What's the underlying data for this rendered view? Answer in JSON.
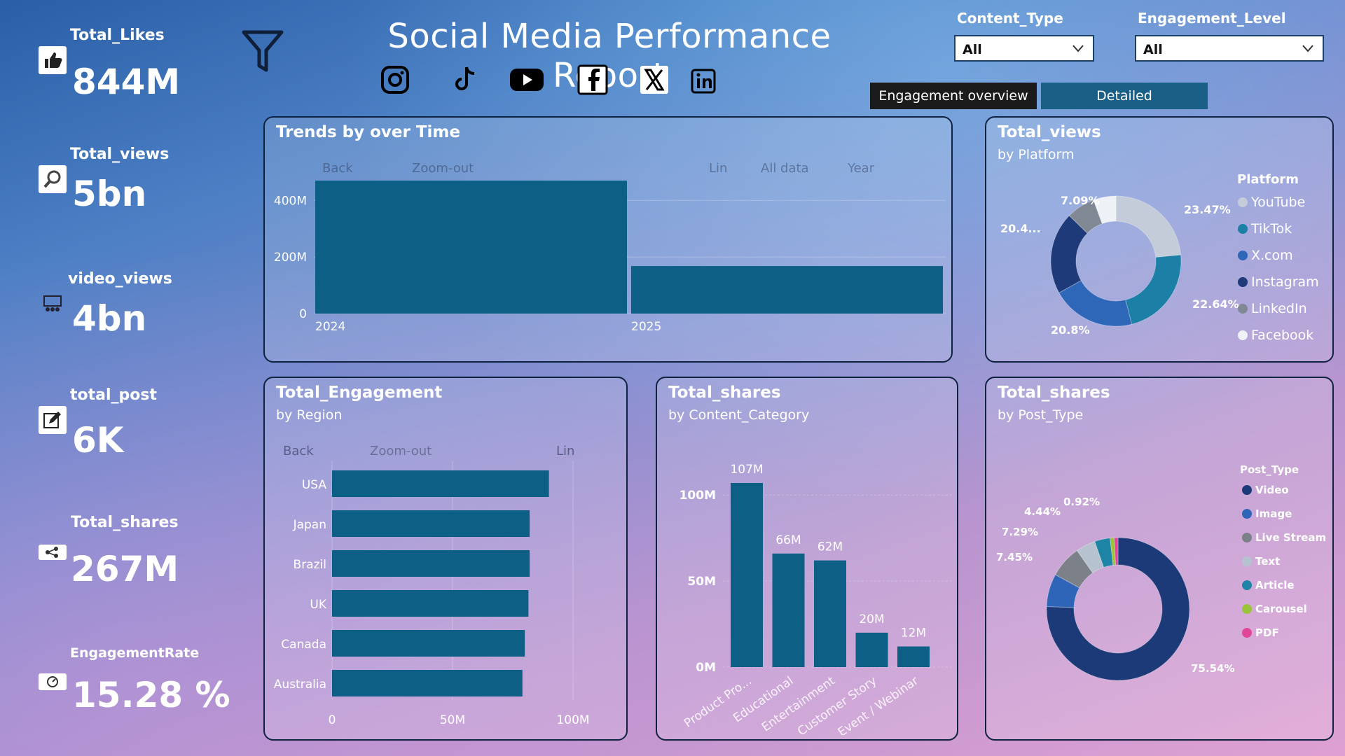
{
  "report_title": "Social Media Performance Report",
  "kpis": [
    {
      "label": "Total_Likes",
      "value": "844M",
      "icon": "thumbs-up-icon"
    },
    {
      "label": "Total_views",
      "value": "5bn",
      "icon": "magnifier-icon"
    },
    {
      "label": "video_views",
      "value": "4bn",
      "icon": "video-audience-icon"
    },
    {
      "label": "total_post",
      "value": "6K",
      "icon": "edit-icon"
    },
    {
      "label": "Total_shares",
      "value": "267M",
      "icon": "share-icon"
    },
    {
      "label": "EngagementRate",
      "value": "15.28 %",
      "icon": "gauge-icon"
    }
  ],
  "social_icons": [
    "instagram-icon",
    "tiktok-icon",
    "youtube-icon",
    "facebook-icon",
    "x-icon",
    "linkedin-icon"
  ],
  "filters": {
    "content_type": {
      "label": "Content_Type",
      "value": "All"
    },
    "engagement_level": {
      "label": "Engagement_Level",
      "value": "All"
    }
  },
  "tabs": {
    "overview": "Engagement overview",
    "detailed": "Detailed"
  },
  "toolbar": {
    "back": "Back",
    "zoom_out": "Zoom-out",
    "lin": "Lin",
    "all_data": "All data",
    "year": "Year"
  },
  "colors": {
    "bar": "#0d5f86",
    "panel_border": "#0f2240"
  },
  "chart_data": [
    {
      "id": "trends",
      "type": "bar",
      "title": "Trends by over Time",
      "categories": [
        "2024",
        "2025"
      ],
      "values": [
        470000000,
        168000000
      ],
      "y_ticks": [
        "0",
        "200M",
        "400M"
      ],
      "y_tick_values": [
        0,
        200000000,
        400000000
      ],
      "ylim": [
        0,
        470000000
      ]
    },
    {
      "id": "views_platform",
      "type": "pie",
      "title": "Total_views",
      "subtitle": "by Platform",
      "legend_title": "Platform",
      "labels": [
        "YouTube",
        "TikTok",
        "X.com",
        "Instagram",
        "LinkedIn",
        "Facebook"
      ],
      "values": [
        23.47,
        22.64,
        20.8,
        20.4,
        7.09,
        5.6
      ],
      "data_labels": [
        "23.47%",
        "22.64%",
        "20.8%",
        "20.4...",
        "7.09%",
        ""
      ],
      "colors": [
        "#c3ccd8",
        "#1c7fa6",
        "#2e66b8",
        "#1e3a78",
        "#7f8893",
        "#eef1f5"
      ]
    },
    {
      "id": "engagement_region",
      "type": "bar",
      "orientation": "horizontal",
      "title": "Total_Engagement",
      "subtitle": "by Region",
      "categories": [
        "USA",
        "Japan",
        "Brazil",
        "UK",
        "Canada",
        "Australia"
      ],
      "values": [
        90000000,
        82000000,
        82000000,
        81500000,
        80000000,
        79000000
      ],
      "x_ticks": [
        "0",
        "50M",
        "100M"
      ],
      "x_tick_values": [
        0,
        50000000,
        100000000
      ],
      "xlim": [
        0,
        100000000
      ]
    },
    {
      "id": "shares_category",
      "type": "bar",
      "title": "Total_shares",
      "subtitle": "by Content_Category",
      "categories": [
        "Product Pro...",
        "Educational",
        "Entertainment",
        "Customer Story",
        "Event / Webinar"
      ],
      "values": [
        107000000,
        66000000,
        62000000,
        20000000,
        12000000
      ],
      "data_labels": [
        "107M",
        "66M",
        "62M",
        "20M",
        "12M"
      ],
      "y_ticks": [
        "0M",
        "50M",
        "100M"
      ],
      "y_tick_values": [
        0,
        50000000,
        100000000
      ],
      "ylim": [
        0,
        107000000
      ]
    },
    {
      "id": "shares_posttype",
      "type": "pie",
      "title": "Total_shares",
      "subtitle": "by Post_Type",
      "legend_title": "Post_Type",
      "labels": [
        "Video",
        "Image",
        "Live Stream",
        "Text",
        "Article",
        "Carousel",
        "PDF"
      ],
      "values": [
        75.54,
        7.45,
        7.29,
        4.44,
        3.5,
        0.92,
        0.86
      ],
      "data_labels": [
        "75.54%",
        "7.45%",
        "7.29%",
        "4.44%",
        "",
        "0.92%",
        ""
      ],
      "colors": [
        "#1c3a78",
        "#2f65b8",
        "#7b8089",
        "#b6c2cf",
        "#1d84a6",
        "#9cc43a",
        "#e0479b"
      ]
    }
  ]
}
